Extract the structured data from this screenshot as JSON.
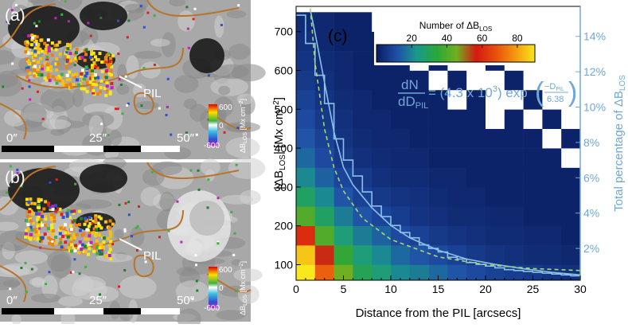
{
  "panels": [
    {
      "label": "(a)",
      "pil": "PIL",
      "scale_labels": [
        "0″",
        "25″",
        "50″"
      ],
      "colorbar_ticks": [
        "600",
        "0",
        "-600"
      ],
      "colorbar_label": {
        "main": "ΔB",
        "sub": "LOS",
        "unit": " [Mx cm",
        "sup": "−2",
        "end": "]"
      }
    },
    {
      "label": "(b)",
      "pil": "PIL",
      "scale_labels": [
        "0″",
        "25″",
        "50″"
      ],
      "colorbar_ticks": [
        "600",
        "0",
        "-600"
      ],
      "colorbar_label": {
        "main": "ΔB",
        "sub": "LOS",
        "unit": " [Mx cm",
        "sup": "−2",
        "end": "]"
      }
    }
  ],
  "chart_data": {
    "type": "heatmap",
    "panel_label": "(c)",
    "x_label": "Distance from the PIL [arcsecs]",
    "y_label": {
      "main": "|ΔB",
      "sub": "LOS",
      "rest": "| [Mx cm",
      "sup": "−2",
      "end": "]"
    },
    "y2_label": {
      "main": "Total percentage of ΔB",
      "sub": "LOS"
    },
    "colorbar_title": {
      "main": "Number of ΔB",
      "sub": "LOS"
    },
    "colorbar_range": [
      0,
      90
    ],
    "colorbar_ticks": [
      20,
      40,
      60,
      80
    ],
    "colormap": [
      "#0b1f63",
      "#1f4fa8",
      "#1a9a8a",
      "#2aa63a",
      "#70b020",
      "#d41a10",
      "#e8500c",
      "#f59a10",
      "#f8e81c"
    ],
    "equation": {
      "num": "dN",
      "den": "dD",
      "den_sub": "PIL",
      "eq": "= (4.3 x 10",
      "exp_pow": "3",
      "fn": ") exp",
      "fnum": "−D",
      "fnum_sub": "PIL",
      "fden": "6.38"
    },
    "xlim": [
      0,
      30
    ],
    "xticks": [
      0,
      5,
      10,
      15,
      20,
      25,
      30
    ],
    "ylim": [
      60,
      765
    ],
    "yticks": [
      100,
      200,
      300,
      400,
      500,
      600,
      700
    ],
    "y2lim": [
      0.2,
      15.7
    ],
    "y2ticks": [
      {
        "value": 2,
        "label": "2%"
      },
      {
        "value": 4,
        "label": "4%"
      },
      {
        "value": 6,
        "label": "6%"
      },
      {
        "value": 8,
        "label": "8%"
      },
      {
        "value": 10,
        "label": "10%"
      },
      {
        "value": 12,
        "label": "12%"
      },
      {
        "value": 14,
        "label": "14%"
      }
    ],
    "y2_color": "#6fa8d6",
    "xbins": [
      0,
      2,
      4,
      6,
      8,
      10,
      12,
      14,
      16,
      18,
      20,
      22,
      24,
      26,
      28,
      30
    ],
    "ybins": [
      50,
      100,
      150,
      200,
      250,
      300,
      350,
      400,
      450,
      500,
      550,
      600,
      650,
      700,
      750
    ],
    "values": [
      [
        90,
        70,
        45,
        30,
        25,
        20,
        18,
        15,
        12,
        10,
        8,
        7,
        6,
        5,
        4
      ],
      [
        85,
        55,
        35,
        25,
        20,
        15,
        12,
        10,
        8,
        6,
        5,
        4,
        3,
        3,
        2
      ],
      [
        60,
        40,
        25,
        18,
        14,
        10,
        8,
        6,
        5,
        4,
        3,
        3,
        2,
        2,
        1
      ],
      [
        40,
        28,
        18,
        12,
        9,
        7,
        5,
        4,
        3,
        3,
        2,
        2,
        1,
        1,
        1
      ],
      [
        28,
        20,
        12,
        8,
        6,
        5,
        4,
        3,
        2,
        2,
        1,
        1,
        1,
        1,
        1
      ],
      [
        20,
        14,
        9,
        6,
        4,
        3,
        3,
        2,
        2,
        1,
        1,
        1,
        1,
        1,
        1
      ],
      [
        15,
        10,
        6,
        4,
        3,
        2,
        2,
        1,
        1,
        1,
        1,
        1,
        1,
        1,
        0
      ],
      [
        12,
        8,
        5,
        3,
        2,
        2,
        1,
        1,
        1,
        1,
        1,
        1,
        1,
        0,
        1
      ],
      [
        10,
        6,
        4,
        2,
        2,
        1,
        1,
        1,
        1,
        1,
        0,
        1,
        0,
        1,
        0
      ],
      [
        8,
        5,
        3,
        2,
        1,
        1,
        1,
        1,
        0,
        1,
        0,
        0,
        1,
        0,
        0
      ],
      [
        6,
        4,
        2,
        1,
        1,
        1,
        1,
        0,
        1,
        0,
        0,
        1,
        0,
        0,
        0
      ],
      [
        5,
        3,
        2,
        1,
        1,
        1,
        0,
        1,
        0,
        0,
        1,
        0,
        0,
        0,
        0
      ],
      [
        4,
        2,
        1,
        1,
        1,
        0,
        1,
        0,
        0,
        0,
        0,
        0,
        0,
        0,
        0
      ],
      [
        3,
        2,
        1,
        1,
        0,
        0,
        0,
        0,
        0,
        0,
        0,
        0,
        0,
        0,
        0
      ]
    ],
    "series": [
      {
        "kind": "line",
        "axis": "y2",
        "color": "#8cc0e8",
        "x": [
          1.5,
          2,
          3,
          4,
          5,
          6,
          8,
          10,
          12,
          15,
          18,
          21,
          24,
          27,
          30
        ],
        "values": [
          15.5,
          14.2,
          11.4,
          8.6,
          6.6,
          5.6,
          4.3,
          3.3,
          2.6,
          1.9,
          1.4,
          1.1,
          0.85,
          0.65,
          0.5
        ]
      },
      {
        "kind": "step",
        "axis": "y2",
        "color": "#8cc0e8",
        "bins": [
          0,
          1,
          2,
          3,
          4,
          5,
          6,
          7,
          8,
          9,
          10,
          11,
          12,
          13,
          14,
          15,
          16,
          17,
          18,
          19,
          20,
          21,
          22,
          23,
          24,
          25,
          26,
          27,
          28,
          29,
          30
        ],
        "values": [
          15.2,
          13.6,
          11.8,
          10.2,
          8.2,
          7.0,
          6.1,
          5.2,
          4.4,
          3.8,
          3.3,
          2.9,
          2.6,
          2.2,
          2.0,
          1.8,
          1.5,
          1.4,
          1.2,
          1.1,
          1.0,
          0.9,
          0.8,
          0.75,
          0.7,
          0.65,
          0.6,
          0.55,
          0.5,
          0.45
        ]
      },
      {
        "kind": "dashed",
        "axis": "y",
        "color": "#a8d86a",
        "x": [
          1.5,
          2,
          3,
          4,
          5,
          7,
          10,
          15,
          20,
          25,
          30
        ],
        "values": [
          760,
          620,
          450,
          350,
          290,
          220,
          165,
          120,
          100,
          90,
          85
        ]
      }
    ]
  }
}
